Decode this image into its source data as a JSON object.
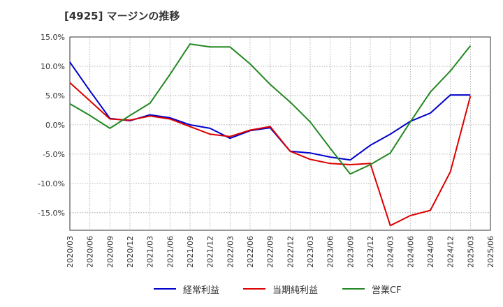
{
  "header": {
    "title": "[4925]  マージンの推移"
  },
  "chart_data": {
    "type": "line",
    "title": "[4925]  マージンの推移",
    "xlabel": "",
    "ylabel": "",
    "ylim": [
      -18,
      15
    ],
    "yticks": [
      15,
      10,
      5,
      0,
      -5,
      -10,
      -15
    ],
    "ytick_labels": [
      "15.0%",
      "10.0%",
      "5.0%",
      "0.0%",
      "-5.0%",
      "-10.0%",
      "-15.0%"
    ],
    "grid": true,
    "legend_position": "bottom",
    "categories": [
      "2020/03",
      "2020/06",
      "2020/09",
      "2020/12",
      "2021/03",
      "2021/06",
      "2021/09",
      "2021/12",
      "2022/03",
      "2022/06",
      "2022/09",
      "2022/12",
      "2023/03",
      "2023/06",
      "2023/09",
      "2023/12",
      "2024/03",
      "2024/06",
      "2024/09",
      "2024/12",
      "2025/03",
      "2025/06"
    ],
    "series": [
      {
        "name": "経常利益",
        "color": "#0000cc",
        "values": [
          10.7,
          5.8,
          1.1,
          0.7,
          1.7,
          1.2,
          0.0,
          -0.6,
          -2.3,
          -1.0,
          -0.5,
          -4.5,
          -4.8,
          -5.5,
          -6.0,
          -3.5,
          -1.6,
          0.6,
          2.0,
          5.1,
          5.1,
          null
        ]
      },
      {
        "name": "当期純利益",
        "color": "#dd0000",
        "values": [
          7.2,
          4.1,
          1.0,
          0.8,
          1.5,
          1.0,
          -0.3,
          -1.6,
          -2.0,
          -0.9,
          -0.3,
          -4.5,
          -5.9,
          -6.6,
          -6.8,
          -6.6,
          -17.2,
          -15.5,
          -14.6,
          -8.0,
          4.9,
          null
        ]
      },
      {
        "name": "営業CF",
        "color": "#228822",
        "values": [
          3.6,
          1.6,
          -0.6,
          1.6,
          3.7,
          8.6,
          13.8,
          13.3,
          13.3,
          10.4,
          6.9,
          3.9,
          0.5,
          -4.0,
          -8.4,
          -6.8,
          -4.8,
          0.5,
          5.6,
          9.2,
          13.5,
          null
        ]
      }
    ]
  },
  "legend": {
    "items": [
      "経常利益",
      "当期純利益",
      "営業CF"
    ]
  }
}
